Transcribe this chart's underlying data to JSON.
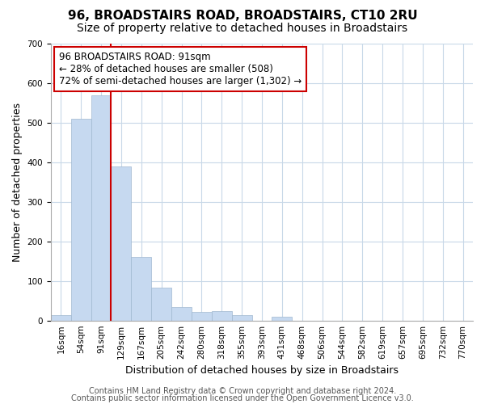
{
  "title": "96, BROADSTAIRS ROAD, BROADSTAIRS, CT10 2RU",
  "subtitle": "Size of property relative to detached houses in Broadstairs",
  "xlabel": "Distribution of detached houses by size in Broadstairs",
  "ylabel": "Number of detached properties",
  "bin_labels": [
    "16sqm",
    "54sqm",
    "91sqm",
    "129sqm",
    "167sqm",
    "205sqm",
    "242sqm",
    "280sqm",
    "318sqm",
    "355sqm",
    "393sqm",
    "431sqm",
    "468sqm",
    "506sqm",
    "544sqm",
    "582sqm",
    "619sqm",
    "657sqm",
    "695sqm",
    "732sqm",
    "770sqm"
  ],
  "bar_heights": [
    13,
    511,
    570,
    389,
    160,
    83,
    35,
    22,
    24,
    13,
    0,
    10,
    0,
    0,
    0,
    0,
    0,
    0,
    0,
    0,
    0
  ],
  "bar_color": "#c6d9f0",
  "vline_index": 2,
  "vline_color": "#cc0000",
  "annotation_line1": "96 BROADSTAIRS ROAD: 91sqm",
  "annotation_line2": "← 28% of detached houses are smaller (508)",
  "annotation_line3": "72% of semi-detached houses are larger (1,302) →",
  "annotation_box_facecolor": "#ffffff",
  "annotation_box_edgecolor": "#cc0000",
  "ylim": [
    0,
    700
  ],
  "yticks": [
    0,
    100,
    200,
    300,
    400,
    500,
    600,
    700
  ],
  "footer_line1": "Contains HM Land Registry data © Crown copyright and database right 2024.",
  "footer_line2": "Contains public sector information licensed under the Open Government Licence v3.0.",
  "background_color": "#ffffff",
  "grid_color": "#c8d8e8",
  "title_fontsize": 11,
  "subtitle_fontsize": 10,
  "axis_label_fontsize": 9,
  "tick_fontsize": 7.5,
  "annotation_fontsize": 8.5,
  "footer_fontsize": 7
}
